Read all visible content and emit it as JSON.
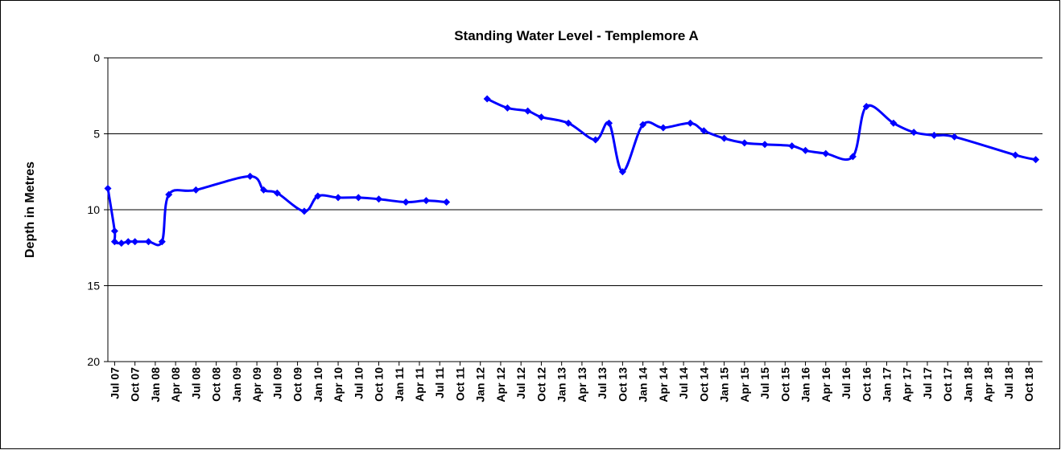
{
  "chart_data": {
    "type": "line",
    "title": "Standing Water Level - Templemore A",
    "y_label": "Depth in Metres",
    "ylim": [
      0,
      20
    ],
    "yticks": [
      0,
      5,
      10,
      15,
      20
    ],
    "y_inverted": true,
    "grid": true,
    "smooth": true,
    "xlim": [
      "2007-06",
      "2018-12"
    ],
    "xticks": [
      {
        "value": "2007-07",
        "label": "Jul 07"
      },
      {
        "value": "2007-10",
        "label": "Oct 07"
      },
      {
        "value": "2008-01",
        "label": "Jan 08"
      },
      {
        "value": "2008-04",
        "label": "Apr 08"
      },
      {
        "value": "2008-07",
        "label": "Jul 08"
      },
      {
        "value": "2008-10",
        "label": "Oct 08"
      },
      {
        "value": "2009-01",
        "label": "Jan 09"
      },
      {
        "value": "2009-04",
        "label": "Apr 09"
      },
      {
        "value": "2009-07",
        "label": "Jul 09"
      },
      {
        "value": "2009-10",
        "label": "Oct 09"
      },
      {
        "value": "2010-01",
        "label": "Jan 10"
      },
      {
        "value": "2010-04",
        "label": "Apr 10"
      },
      {
        "value": "2010-07",
        "label": "Jul 10"
      },
      {
        "value": "2010-10",
        "label": "Oct 10"
      },
      {
        "value": "2011-01",
        "label": "Jan 11"
      },
      {
        "value": "2011-04",
        "label": "Apr 11"
      },
      {
        "value": "2011-07",
        "label": "Jul 11"
      },
      {
        "value": "2011-10",
        "label": "Oct 11"
      },
      {
        "value": "2012-01",
        "label": "Jan 12"
      },
      {
        "value": "2012-04",
        "label": "Apr 12"
      },
      {
        "value": "2012-07",
        "label": "Jul 12"
      },
      {
        "value": "2012-10",
        "label": "Oct 12"
      },
      {
        "value": "2013-01",
        "label": "Jan 13"
      },
      {
        "value": "2013-04",
        "label": "Apr 13"
      },
      {
        "value": "2013-07",
        "label": "Jul 13"
      },
      {
        "value": "2013-10",
        "label": "Oct 13"
      },
      {
        "value": "2014-01",
        "label": "Jan 14"
      },
      {
        "value": "2014-04",
        "label": "Apr 14"
      },
      {
        "value": "2014-07",
        "label": "Jul 14"
      },
      {
        "value": "2014-10",
        "label": "Oct 14"
      },
      {
        "value": "2015-01",
        "label": "Jan 15"
      },
      {
        "value": "2015-04",
        "label": "Apr 15"
      },
      {
        "value": "2015-07",
        "label": "Jul 15"
      },
      {
        "value": "2015-10",
        "label": "Oct 15"
      },
      {
        "value": "2016-01",
        "label": "Jan 16"
      },
      {
        "value": "2016-04",
        "label": "Apr 16"
      },
      {
        "value": "2016-07",
        "label": "Jul 16"
      },
      {
        "value": "2016-10",
        "label": "Oct 16"
      },
      {
        "value": "2017-01",
        "label": "Jan 17"
      },
      {
        "value": "2017-04",
        "label": "Apr 17"
      },
      {
        "value": "2017-07",
        "label": "Jul 17"
      },
      {
        "value": "2017-10",
        "label": "Oct 17"
      },
      {
        "value": "2018-01",
        "label": "Jan 18"
      },
      {
        "value": "2018-04",
        "label": "Apr 18"
      },
      {
        "value": "2018-07",
        "label": "Jul 18"
      },
      {
        "value": "2018-10",
        "label": "Oct 18"
      }
    ],
    "series": [
      {
        "color": "#0000ff",
        "x": [
          "2007-06",
          "2007-07",
          "2007-07",
          "2007-08",
          "2007-09",
          "2007-10",
          "2007-12",
          "2008-02",
          "2008-03",
          "2008-07",
          "2009-03",
          "2009-05",
          "2009-07",
          "2009-11",
          "2010-01",
          "2010-04",
          "2010-07",
          "2010-10",
          "2011-02",
          "2011-05",
          "2011-08"
        ],
        "values": [
          8.6,
          11.4,
          12.1,
          12.2,
          12.1,
          12.1,
          12.1,
          12.1,
          9.0,
          8.7,
          7.8,
          8.7,
          8.9,
          10.1,
          9.1,
          9.2,
          9.2,
          9.3,
          9.5,
          9.4,
          9.5
        ]
      },
      {
        "color": "#0000ff",
        "x": [
          "2012-02",
          "2012-05",
          "2012-08",
          "2012-10",
          "2013-02",
          "2013-06",
          "2013-08",
          "2013-10",
          "2014-01",
          "2014-04",
          "2014-08",
          "2014-10",
          "2015-01",
          "2015-04",
          "2015-07",
          "2015-11",
          "2016-01",
          "2016-04",
          "2016-08",
          "2016-10",
          "2017-02",
          "2017-05",
          "2017-08",
          "2017-11",
          "2018-08",
          "2018-11"
        ],
        "values": [
          2.7,
          3.3,
          3.5,
          3.9,
          4.3,
          5.4,
          4.3,
          7.5,
          4.4,
          4.6,
          4.3,
          4.8,
          5.3,
          5.6,
          5.7,
          5.8,
          6.1,
          6.3,
          6.5,
          3.2,
          4.3,
          4.9,
          5.1,
          5.2,
          6.4,
          6.7
        ]
      }
    ]
  }
}
